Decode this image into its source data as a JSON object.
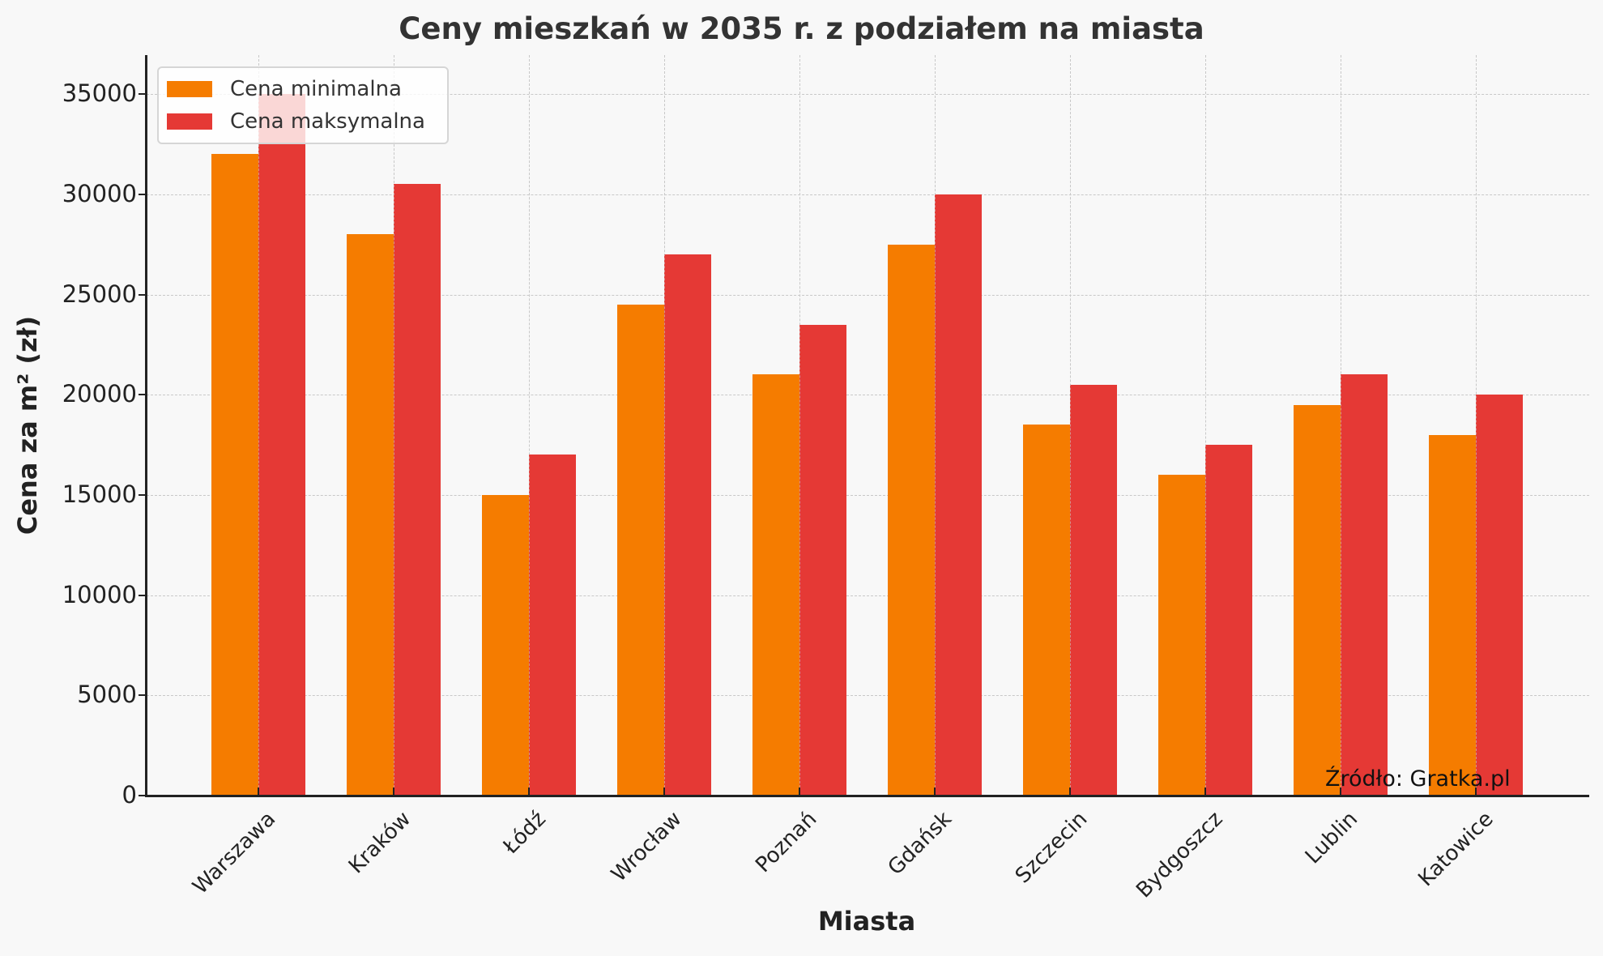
{
  "chart_data": {
    "type": "bar",
    "title": "Ceny mieszkań w 2035 r. z podziałem na miasta",
    "xlabel": "Miasta",
    "ylabel": "Cena za m² (zł)",
    "ylim": [
      0,
      36500
    ],
    "yticks": [
      0,
      5000,
      10000,
      15000,
      20000,
      25000,
      30000,
      35000
    ],
    "grid": true,
    "legend_position": "upper left",
    "categories": [
      "Warszawa",
      "Kraków",
      "Łódź",
      "Wrocław",
      "Poznań",
      "Gdańsk",
      "Szczecin",
      "Bydgoszcz",
      "Lublin",
      "Katowice"
    ],
    "series": [
      {
        "name": "Cena minimalna",
        "color": "#f57c00",
        "values": [
          32000,
          28000,
          15000,
          24500,
          21000,
          27500,
          18500,
          16000,
          19500,
          18000
        ]
      },
      {
        "name": "Cena maksymalna",
        "color": "#e53935",
        "values": [
          35000,
          30500,
          17000,
          27000,
          23500,
          30000,
          20500,
          17500,
          21000,
          20000
        ]
      }
    ],
    "annotation": "Źródło: Gratka.pl"
  }
}
